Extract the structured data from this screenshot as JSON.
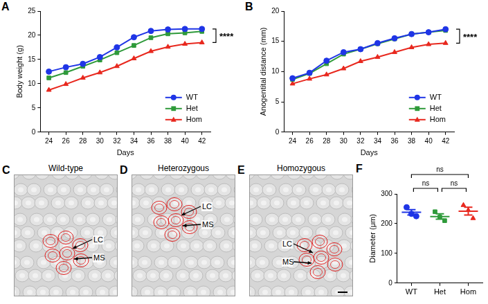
{
  "chart_data": [
    {
      "panel": "A",
      "type": "line",
      "x_label": "Days",
      "y_label": "Body weight (g)",
      "x": [
        24,
        26,
        28,
        30,
        32,
        34,
        36,
        38,
        40,
        42
      ],
      "xlim": [
        23,
        43
      ],
      "xticks": [
        24,
        26,
        28,
        30,
        32,
        34,
        36,
        38,
        40,
        42
      ],
      "ylim": [
        0,
        25
      ],
      "yticks": [
        0,
        5,
        10,
        15,
        20,
        25
      ],
      "grid": false,
      "legend": "lower right",
      "series": [
        {
          "name": "WT",
          "color": "#1f35e6",
          "marker": "circle",
          "values": [
            12.5,
            13.4,
            14.1,
            15.5,
            17.5,
            19.6,
            20.9,
            21.2,
            21.3,
            21.3
          ]
        },
        {
          "name": "Het",
          "color": "#2e9a3a",
          "marker": "square",
          "values": [
            11.2,
            12.3,
            13.6,
            14.9,
            16.4,
            17.9,
            19.5,
            20.3,
            20.5,
            20.8
          ]
        },
        {
          "name": "Hom",
          "color": "#e8281e",
          "marker": "triangle",
          "values": [
            8.7,
            9.9,
            11.2,
            12.3,
            13.6,
            15.2,
            16.7,
            17.6,
            18.2,
            18.5
          ]
        }
      ],
      "annotations": [
        {
          "text": "****",
          "between": [
            "WT",
            "Hom"
          ]
        }
      ]
    },
    {
      "panel": "B",
      "type": "line",
      "x_label": "Days",
      "y_label": "Anogentital distance (mm)",
      "x": [
        24,
        26,
        28,
        30,
        32,
        34,
        36,
        38,
        40,
        42
      ],
      "xlim": [
        23,
        43
      ],
      "xticks": [
        24,
        26,
        28,
        30,
        32,
        34,
        36,
        38,
        40,
        42
      ],
      "ylim": [
        0,
        20
      ],
      "yticks": [
        0,
        5,
        10,
        15,
        20
      ],
      "grid": false,
      "legend": "lower right",
      "series": [
        {
          "name": "WT",
          "color": "#1f35e6",
          "marker": "circle",
          "values": [
            8.9,
            9.8,
            11.8,
            13.2,
            13.7,
            14.7,
            15.5,
            16.2,
            16.5,
            17.0
          ]
        },
        {
          "name": "Het",
          "color": "#2e9a3a",
          "marker": "square",
          "values": [
            8.7,
            9.7,
            11.3,
            12.9,
            13.7,
            14.6,
            15.4,
            16.2,
            16.5,
            16.8
          ]
        },
        {
          "name": "Hom",
          "color": "#e8281e",
          "marker": "triangle",
          "values": [
            8.0,
            8.8,
            9.5,
            10.5,
            11.7,
            12.4,
            13.2,
            14.0,
            14.5,
            14.7
          ]
        }
      ],
      "annotations": [
        {
          "text": "****",
          "between": [
            "WT",
            "Hom"
          ]
        }
      ]
    },
    {
      "panel": "F",
      "type": "dot",
      "y_label": "Diameter (μm)",
      "categories": [
        "WT",
        "Het",
        "Hom"
      ],
      "colors": [
        "#1f35e6",
        "#2e9a3a",
        "#e8281e"
      ],
      "markers": [
        "circle",
        "square",
        "triangle"
      ],
      "points": [
        [
          255,
          233,
          225
        ],
        [
          240,
          222,
          210
        ],
        [
          262,
          245,
          218
        ]
      ],
      "mean": [
        238,
        224,
        242
      ],
      "sem": [
        9,
        9,
        13
      ],
      "ylim": [
        0,
        300
      ],
      "yticks": [
        0,
        100,
        200,
        300
      ],
      "grid": false,
      "comparisons": [
        {
          "between": [
            "WT",
            "Het"
          ],
          "text": "ns"
        },
        {
          "between": [
            "Het",
            "Hom"
          ],
          "text": "ns"
        },
        {
          "between": [
            "WT",
            "Hom"
          ],
          "text": "ns"
        }
      ]
    }
  ],
  "image_panels": [
    {
      "panel": "C",
      "title": "Wild-type",
      "labels": [
        "LC",
        "MS"
      ]
    },
    {
      "panel": "D",
      "title": "Heterozygous",
      "labels": [
        "LC",
        "MS"
      ]
    },
    {
      "panel": "E",
      "title": "Homozygous",
      "labels": [
        "LC",
        "MS"
      ]
    }
  ]
}
